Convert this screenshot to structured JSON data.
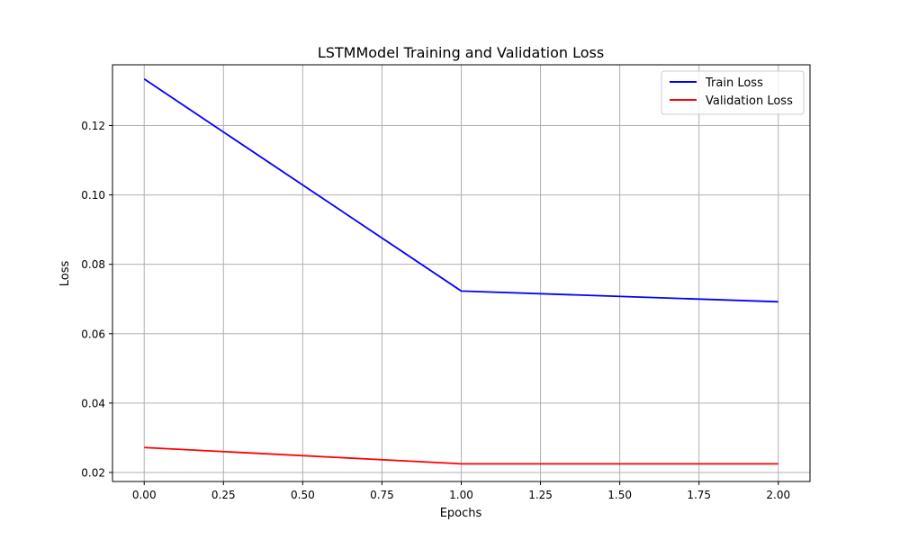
{
  "chart_data": {
    "type": "line",
    "title": "LSTMModel Training and Validation Loss",
    "xlabel": "Epochs",
    "ylabel": "Loss",
    "xlim": [
      -0.1,
      2.1
    ],
    "ylim": [
      0.0174,
      0.1375
    ],
    "xticks": [
      0.0,
      0.25,
      0.5,
      0.75,
      1.0,
      1.25,
      1.5,
      1.75,
      2.0
    ],
    "xtick_labels": [
      "0.00",
      "0.25",
      "0.50",
      "0.75",
      "1.00",
      "1.25",
      "1.50",
      "1.75",
      "2.00"
    ],
    "yticks": [
      0.02,
      0.04,
      0.06,
      0.08,
      0.1,
      0.12
    ],
    "ytick_labels": [
      "0.02",
      "0.04",
      "0.06",
      "0.08",
      "0.10",
      "0.12"
    ],
    "grid": true,
    "legend_position": "top-right",
    "x": [
      0,
      1,
      2
    ],
    "series": [
      {
        "name": "Train Loss",
        "color": "#0000ff",
        "values": [
          0.1334,
          0.0723,
          0.0692
        ]
      },
      {
        "name": "Validation Loss",
        "color": "#ff0000",
        "values": [
          0.0272,
          0.0225,
          0.0225
        ]
      }
    ]
  }
}
